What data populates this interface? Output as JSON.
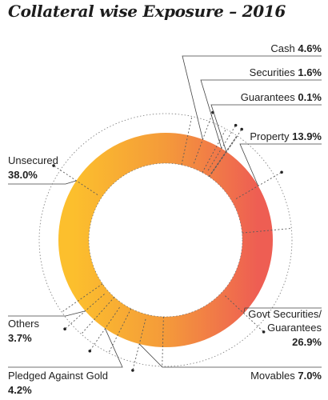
{
  "chart_data": {
    "type": "pie",
    "title": "Collateral wise Exposure – 2016",
    "slices": [
      {
        "label": "Cash",
        "value": 4.6,
        "display": "4.6%"
      },
      {
        "label": "Securities",
        "value": 1.6,
        "display": "1.6%"
      },
      {
        "label": "Guarantees",
        "value": 0.1,
        "display": "0.1%"
      },
      {
        "label": "Property",
        "value": 13.9,
        "display": "13.9%"
      },
      {
        "label": "Govt Securities/ Guarantees",
        "value": 26.9,
        "display": "26.9%"
      },
      {
        "label": "Movables",
        "value": 7.0,
        "display": "7.0%"
      },
      {
        "label": "Pledged Against Gold",
        "value": 4.2,
        "display": "4.2%"
      },
      {
        "label": "Others",
        "value": 3.7,
        "display": "3.7%"
      },
      {
        "label": "Unsecured",
        "value": 38.0,
        "display": "38.0%"
      }
    ],
    "colors": {
      "gradient_left": "#fcbf2d",
      "gradient_mid": "#f49a3a",
      "gradient_right": "#ee5e53"
    }
  }
}
